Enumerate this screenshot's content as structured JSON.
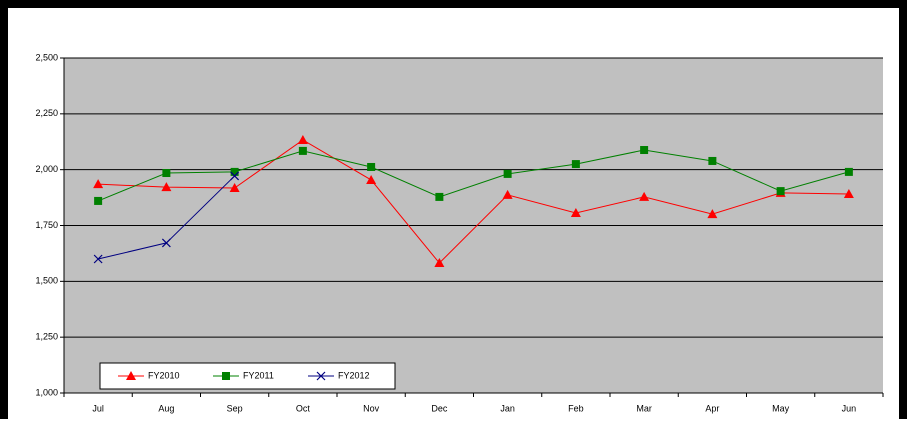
{
  "chart_data": {
    "type": "line",
    "categories": [
      "Jul",
      "Aug",
      "Sep",
      "Oct",
      "Nov",
      "Dec",
      "Jan",
      "Feb",
      "Mar",
      "Apr",
      "May",
      "Jun"
    ],
    "series": [
      {
        "name": "FY2010",
        "color": "#ff0000",
        "marker": "triangle",
        "values": [
          1935,
          1922,
          1918,
          2133,
          1954,
          1582,
          1887,
          1806,
          1878,
          1801,
          1896,
          1891
        ]
      },
      {
        "name": "FY2011",
        "color": "#008000",
        "marker": "square",
        "values": [
          1860,
          1985,
          1990,
          2084,
          2012,
          1878,
          1981,
          2025,
          2088,
          2039,
          1904,
          1990
        ]
      },
      {
        "name": "FY2012",
        "color": "#000080",
        "marker": "x",
        "values": [
          1600,
          1672,
          1972,
          null,
          null,
          null,
          null,
          null,
          null,
          null,
          null,
          null
        ]
      }
    ],
    "ylim": [
      1000,
      2500
    ],
    "yticks": [
      {
        "value": 1000,
        "label": "1,000"
      },
      {
        "value": 1250,
        "label": "1,250"
      },
      {
        "value": 1500,
        "label": "1,500"
      },
      {
        "value": 1750,
        "label": "1,750"
      },
      {
        "value": 2000,
        "label": "2,000"
      },
      {
        "value": 2250,
        "label": "2,250"
      },
      {
        "value": 2500,
        "label": "2,500"
      }
    ],
    "grid": true,
    "legend": "bottom-left",
    "plot_background": "#c0c0c0"
  }
}
